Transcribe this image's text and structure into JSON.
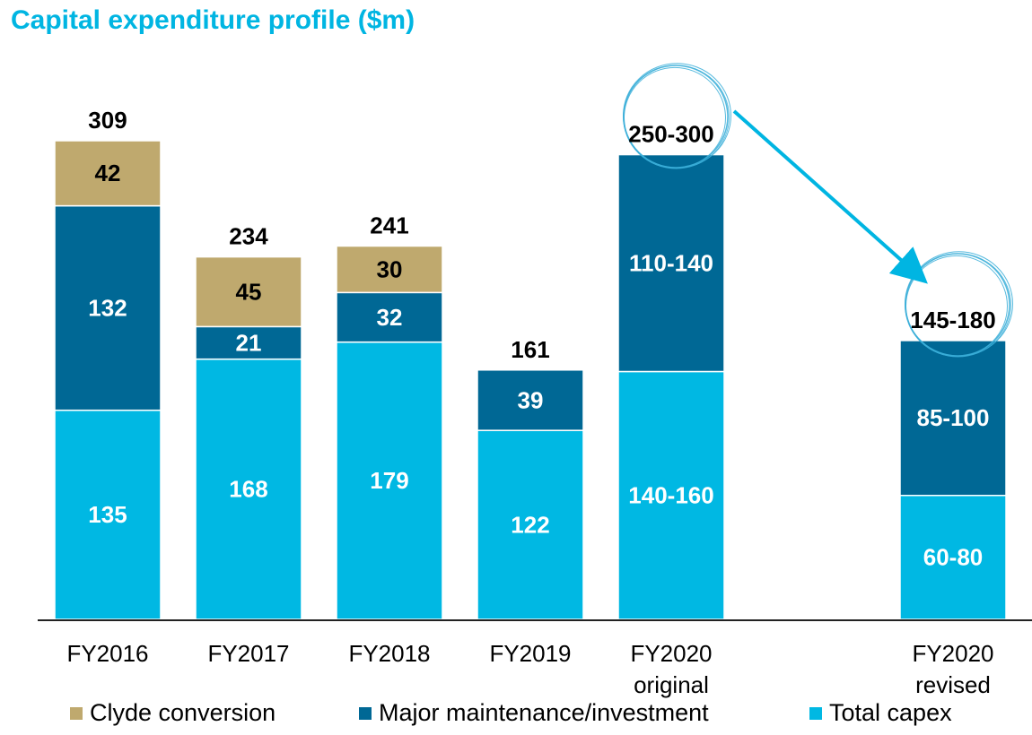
{
  "title": "Capital expenditure profile ($m)",
  "chart_data": {
    "type": "bar",
    "stacked": true,
    "title": "Capital expenditure profile ($m)",
    "xlabel": "",
    "ylabel": "",
    "ylim": [
      0,
      310
    ],
    "grid": false,
    "legend_position": "bottom",
    "categories": [
      "FY2016",
      "FY2017",
      "FY2018",
      "FY2019",
      "FY2020 original",
      "FY2020 revised"
    ],
    "category_lines": [
      [
        "FY2016"
      ],
      [
        "FY2017"
      ],
      [
        "FY2018"
      ],
      [
        "FY2019"
      ],
      [
        "FY2020",
        "original"
      ],
      [
        "FY2020",
        "revised"
      ]
    ],
    "series": [
      {
        "name": "Total capex",
        "color": "#00b8e3",
        "label_color": "#ffffff",
        "values": [
          135,
          168,
          179,
          122,
          160,
          80
        ],
        "labels": [
          "135",
          "168",
          "179",
          "122",
          "140-160",
          "60-80"
        ]
      },
      {
        "name": "Major maintenance/investment",
        "color": "#006895",
        "label_color": "#ffffff",
        "values": [
          132,
          21,
          32,
          39,
          140,
          100
        ],
        "labels": [
          "132",
          "21",
          "32",
          "39",
          "110-140",
          "85-100"
        ]
      },
      {
        "name": "Clyde conversion",
        "color": "#bfa96e",
        "label_color": "#000000",
        "values": [
          42,
          45,
          30,
          0,
          0,
          0
        ],
        "labels": [
          "42",
          "45",
          "30",
          "",
          "",
          ""
        ]
      }
    ],
    "totals": [
      "309",
      "234",
      "241",
      "161",
      "250-300",
      "145-180"
    ],
    "highlighted_totals": [
      "FY2020 original",
      "FY2020 revised"
    ],
    "annotation": "Arrow from FY2020 original total (250-300) to FY2020 revised total (145-180)",
    "legend": [
      {
        "name": "Clyde conversion",
        "color": "#bfa96e"
      },
      {
        "name": "Major maintenance/investment",
        "color": "#006895"
      },
      {
        "name": "Total capex",
        "color": "#00b8e3"
      }
    ]
  }
}
